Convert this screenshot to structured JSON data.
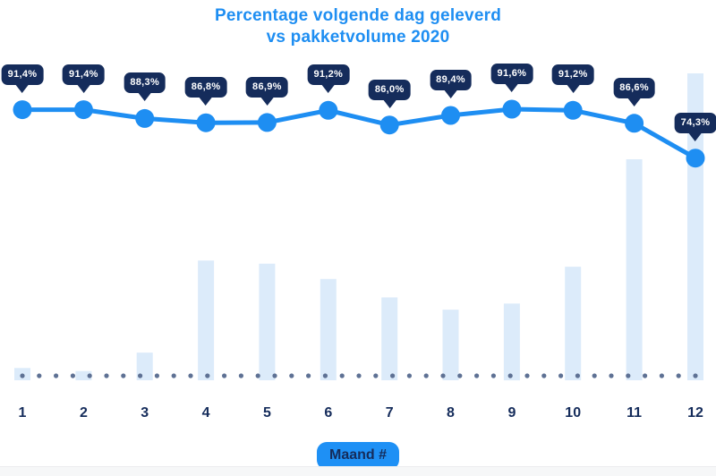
{
  "title": {
    "line1": "Percentage volgende dag geleverd",
    "line2": "vs pakketvolume 2020"
  },
  "x_axis": {
    "title": "Maand #",
    "tick_labels": [
      "1",
      "2",
      "3",
      "4",
      "5",
      "6",
      "7",
      "8",
      "9",
      "10",
      "11",
      "12"
    ]
  },
  "chart_data": {
    "type": "line+bar combo",
    "title": "Percentage volgende dag geleverd vs pakketvolume 2020",
    "xlabel": "Maand #",
    "categories": [
      1,
      2,
      3,
      4,
      5,
      6,
      7,
      8,
      9,
      10,
      11,
      12
    ],
    "series": [
      {
        "name": "Percentage volgende dag geleverd",
        "type": "line",
        "unit": "%",
        "values": [
          91.4,
          91.4,
          88.3,
          86.8,
          86.9,
          91.2,
          86.0,
          89.4,
          91.6,
          91.2,
          86.6,
          74.3
        ],
        "labels": [
          "91,4%",
          "91,4%",
          "88,3%",
          "86,8%",
          "86,9%",
          "91,2%",
          "86,0%",
          "89,4%",
          "91,6%",
          "91,2%",
          "86,6%",
          "74,3%"
        ]
      },
      {
        "name": "Pakketvolume 2020",
        "type": "bar",
        "unit": "relative index, estimated (max month = 100, no axis shown)",
        "values": [
          4,
          3,
          9,
          39,
          38,
          33,
          27,
          23,
          25,
          37,
          72,
          100
        ]
      }
    ],
    "legend": "none",
    "grid": "none",
    "baseline": "dotted",
    "colors": {
      "line": "#1e8ef2",
      "point": "#1e8ef2",
      "bar": "#dcebfa",
      "tooltip_bg": "#152c5b",
      "tooltip_text": "#ffffff",
      "baseline_dots": "#5e7194",
      "title_text": "#1e8ef2",
      "axis_label_text": "#152c5b",
      "badge_bg": "#1e90f5"
    }
  }
}
